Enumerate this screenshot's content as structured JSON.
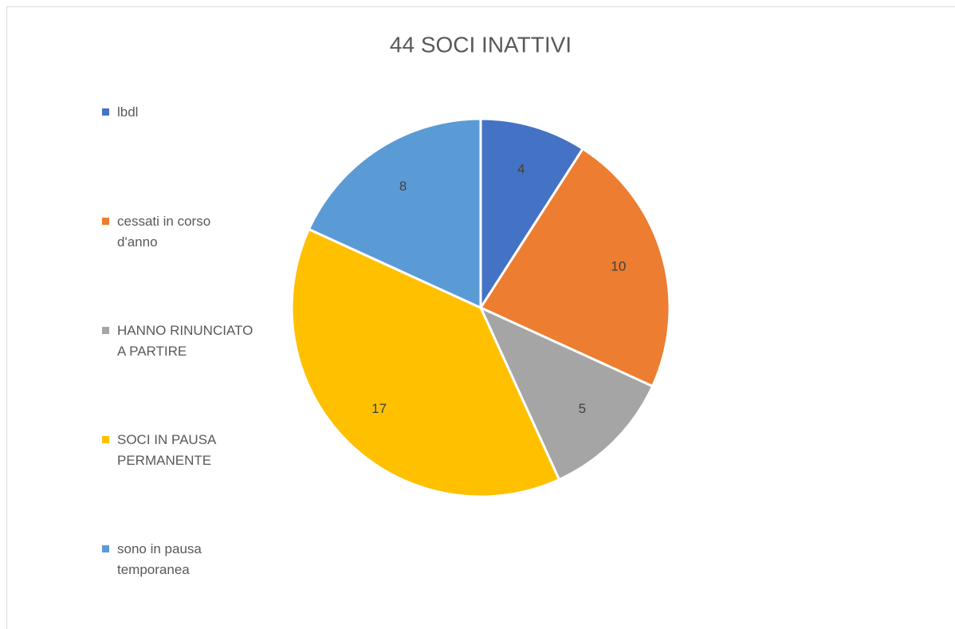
{
  "chart_data": {
    "type": "pie",
    "title": "44  SOCI INATTIVI",
    "categories": [
      "lbdl",
      "cessati in corso d'anno",
      "HANNO RINUNCIATO A PARTIRE",
      "SOCI IN PAUSA PERMANENTE",
      "sono in pausa temporanea"
    ],
    "values": [
      4,
      10,
      5,
      17,
      8
    ],
    "colors": [
      "#4472c4",
      "#ed7d31",
      "#a5a5a5",
      "#ffc000",
      "#5b9bd5"
    ],
    "legend": "left"
  }
}
